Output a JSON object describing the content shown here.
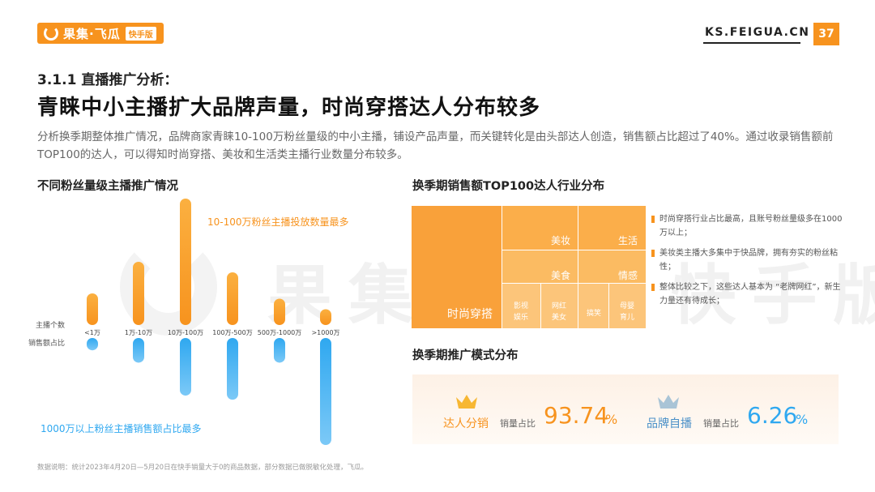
{
  "header": {
    "logo_text": "果集·飞瓜",
    "logo_badge": "快手版",
    "site_url": "KS.FEIGUA.CN",
    "page_number": "37"
  },
  "section": "3.1.1 直播推广分析：",
  "headline": "青睐中小主播扩大品牌声量，时尚穿搭达人分布较多",
  "description": "分析换季期整体推广情况，品牌商家青睐10-100万粉丝量级的中小主播，铺设产品声量，而关键转化是由头部达人创造，销售额占比超过了40%。通过收录销售额前TOP100的达人，可以得知时尚穿搭、美妆和生活类主播行业数量分布较多。",
  "watermark": "果集·飞瓜 快手版",
  "colors": {
    "orange": "#f7931e",
    "blue": "#2fa8f0"
  },
  "chart_data": [
    {
      "type": "bar",
      "title": "不同粉丝量级主播推广情况",
      "categories": [
        "<1万",
        "1万-10万",
        "10万-100万",
        "100万-500万",
        "500万-1000万",
        ">1000万"
      ],
      "series": [
        {
          "name": "主播个数",
          "values": [
            3,
            6,
            12,
            5,
            2.5,
            1.5
          ]
        },
        {
          "name": "销售额占比",
          "values": [
            1.5,
            3,
            7,
            7.5,
            3,
            13
          ]
        }
      ],
      "annotations": {
        "top": "10-100万粉丝主播投放数量最多",
        "bottom": "1000万以上粉丝主播销售额占比最多"
      }
    },
    {
      "type": "treemap",
      "title": "换季期销售额TOP100达人行业分布",
      "items": [
        "时尚穿搭",
        "美妆",
        "生活",
        "美食",
        "情感",
        "影视娱乐",
        "网红美女",
        "搞笑",
        "母婴育儿"
      ],
      "item_labels": [
        {
          "text": "时尚穿搭"
        },
        {
          "text": "美妆"
        },
        {
          "text": "生活"
        },
        {
          "text": "美食"
        },
        {
          "text": "情感"
        },
        {
          "text": "影视",
          "text2": "娱乐"
        },
        {
          "text": "网红",
          "text2": "美女"
        },
        {
          "text": "搞笑"
        },
        {
          "text": "母婴",
          "text2": "育儿"
        }
      ],
      "notes": [
        "时尚穿搭行业占比最高，且账号粉丝量级多在1000万以上；",
        "美妆类主播大多集中于快品牌，拥有夯实的粉丝粘性；",
        "整体比较之下，这些达人基本为 “老牌网红”，新生力量还有待成长；"
      ]
    },
    {
      "type": "table",
      "title": "换季期推广模式分布",
      "rows": [
        {
          "mode": "达人分销",
          "metric": "销量占比",
          "value": "93.74",
          "unit": "%"
        },
        {
          "mode": "品牌自播",
          "metric": "销量占比",
          "value": "6.26",
          "unit": "%"
        }
      ]
    }
  ],
  "footnote": "数据说明：统计2023年4月20日—5月20日在快手销量大于0的商品数据，部分数据已做脱敏化处理，飞瓜。"
}
